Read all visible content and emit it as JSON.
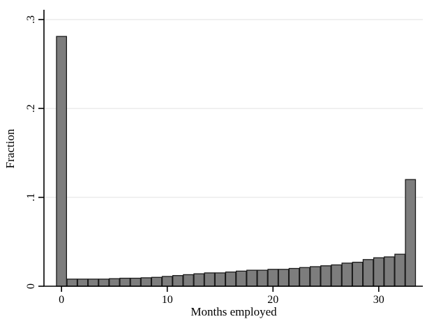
{
  "chart_data": {
    "type": "bar",
    "subtype": "histogram",
    "xlabel": "Months employed",
    "ylabel": "Fraction",
    "x": [
      0,
      1,
      2,
      3,
      4,
      5,
      6,
      7,
      8,
      9,
      10,
      11,
      12,
      13,
      14,
      15,
      16,
      17,
      18,
      19,
      20,
      21,
      22,
      23,
      24,
      25,
      26,
      27,
      28,
      29,
      30,
      31,
      32,
      33
    ],
    "values": [
      0.281,
      0.008,
      0.008,
      0.008,
      0.008,
      0.0085,
      0.009,
      0.009,
      0.0095,
      0.01,
      0.011,
      0.012,
      0.013,
      0.014,
      0.015,
      0.015,
      0.016,
      0.017,
      0.018,
      0.018,
      0.019,
      0.019,
      0.02,
      0.021,
      0.022,
      0.023,
      0.024,
      0.026,
      0.027,
      0.03,
      0.032,
      0.033,
      0.036,
      0.12
    ],
    "xlim": [
      -1.66,
      34.17
    ],
    "ylim": [
      0,
      0.311
    ],
    "x_ticks": [
      0,
      10,
      20,
      30
    ],
    "x_tick_labels": [
      "0",
      "10",
      "20",
      "30"
    ],
    "y_ticks": [
      0,
      0.1,
      0.2,
      0.3
    ],
    "y_tick_labels": [
      "0",
      ".1",
      ".2",
      ".3"
    ],
    "grid": "horizontal-gridlines-at-y-ticks",
    "legend": "none",
    "bar_fill": "#7d7d7d",
    "bar_stroke": "#1a1a1a",
    "axis_color": "#000000",
    "grid_color": "#ebebeb",
    "background": "#ffffff"
  }
}
